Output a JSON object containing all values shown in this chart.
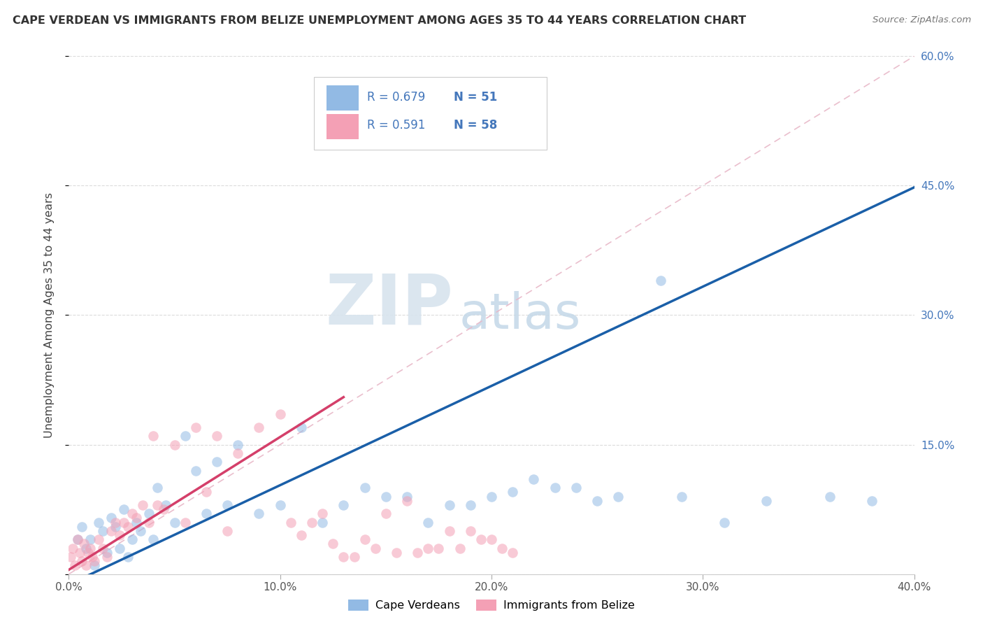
{
  "title": "CAPE VERDEAN VS IMMIGRANTS FROM BELIZE UNEMPLOYMENT AMONG AGES 35 TO 44 YEARS CORRELATION CHART",
  "source": "Source: ZipAtlas.com",
  "ylabel": "Unemployment Among Ages 35 to 44 years",
  "xlim": [
    0.0,
    0.4
  ],
  "ylim": [
    0.0,
    0.6
  ],
  "xticks": [
    0.0,
    0.1,
    0.2,
    0.3,
    0.4
  ],
  "ytick_vals": [
    0.0,
    0.15,
    0.3,
    0.45,
    0.6
  ],
  "ytick_labels_right": [
    "",
    "15.0%",
    "30.0%",
    "45.0%",
    "60.0%"
  ],
  "xtick_labels": [
    "0.0%",
    "10.0%",
    "20.0%",
    "30.0%",
    "40.0%"
  ],
  "color_blue": "#92BAE4",
  "color_pink": "#F4A0B5",
  "line_blue": "#1A5FA8",
  "line_pink": "#D43F6A",
  "legend_text_color": "#4477BB",
  "watermark_zip_color": "#D0DCE8",
  "watermark_atlas_color": "#B8CCE0",
  "blue_scatter_x": [
    0.004,
    0.006,
    0.008,
    0.01,
    0.012,
    0.014,
    0.016,
    0.018,
    0.02,
    0.022,
    0.024,
    0.026,
    0.028,
    0.03,
    0.032,
    0.034,
    0.038,
    0.04,
    0.042,
    0.046,
    0.05,
    0.055,
    0.06,
    0.065,
    0.07,
    0.075,
    0.08,
    0.09,
    0.1,
    0.11,
    0.12,
    0.13,
    0.14,
    0.15,
    0.16,
    0.17,
    0.18,
    0.19,
    0.2,
    0.21,
    0.22,
    0.23,
    0.24,
    0.25,
    0.26,
    0.28,
    0.29,
    0.31,
    0.33,
    0.36,
    0.38
  ],
  "blue_scatter_y": [
    0.04,
    0.055,
    0.03,
    0.04,
    0.01,
    0.06,
    0.05,
    0.025,
    0.065,
    0.055,
    0.03,
    0.075,
    0.02,
    0.04,
    0.06,
    0.05,
    0.07,
    0.04,
    0.1,
    0.08,
    0.06,
    0.16,
    0.12,
    0.07,
    0.13,
    0.08,
    0.15,
    0.07,
    0.08,
    0.17,
    0.06,
    0.08,
    0.1,
    0.09,
    0.09,
    0.06,
    0.08,
    0.08,
    0.09,
    0.095,
    0.11,
    0.1,
    0.1,
    0.085,
    0.09,
    0.34,
    0.09,
    0.06,
    0.085,
    0.09,
    0.085
  ],
  "pink_scatter_x": [
    0.001,
    0.002,
    0.003,
    0.004,
    0.005,
    0.006,
    0.007,
    0.008,
    0.009,
    0.01,
    0.011,
    0.012,
    0.014,
    0.016,
    0.018,
    0.02,
    0.022,
    0.024,
    0.026,
    0.028,
    0.03,
    0.032,
    0.035,
    0.038,
    0.04,
    0.042,
    0.045,
    0.05,
    0.055,
    0.06,
    0.065,
    0.07,
    0.075,
    0.08,
    0.09,
    0.1,
    0.105,
    0.11,
    0.115,
    0.12,
    0.125,
    0.13,
    0.135,
    0.14,
    0.145,
    0.15,
    0.155,
    0.16,
    0.165,
    0.17,
    0.175,
    0.18,
    0.185,
    0.19,
    0.195,
    0.2,
    0.205,
    0.21
  ],
  "pink_scatter_y": [
    0.02,
    0.03,
    0.01,
    0.04,
    0.025,
    0.015,
    0.035,
    0.01,
    0.025,
    0.03,
    0.02,
    0.015,
    0.04,
    0.03,
    0.02,
    0.05,
    0.06,
    0.045,
    0.06,
    0.055,
    0.07,
    0.065,
    0.08,
    0.06,
    0.16,
    0.08,
    0.075,
    0.15,
    0.06,
    0.17,
    0.095,
    0.16,
    0.05,
    0.14,
    0.17,
    0.185,
    0.06,
    0.045,
    0.06,
    0.07,
    0.035,
    0.02,
    0.02,
    0.04,
    0.03,
    0.07,
    0.025,
    0.085,
    0.025,
    0.03,
    0.03,
    0.05,
    0.03,
    0.05,
    0.04,
    0.04,
    0.03,
    0.025
  ],
  "blue_line_x": [
    0.0,
    0.4
  ],
  "blue_line_y": [
    -0.012,
    0.448
  ],
  "pink_line_x": [
    0.0,
    0.13
  ],
  "pink_line_y": [
    0.005,
    0.205
  ],
  "ref_line_x": [
    0.0,
    0.4
  ],
  "ref_line_y": [
    0.0,
    0.6
  ]
}
